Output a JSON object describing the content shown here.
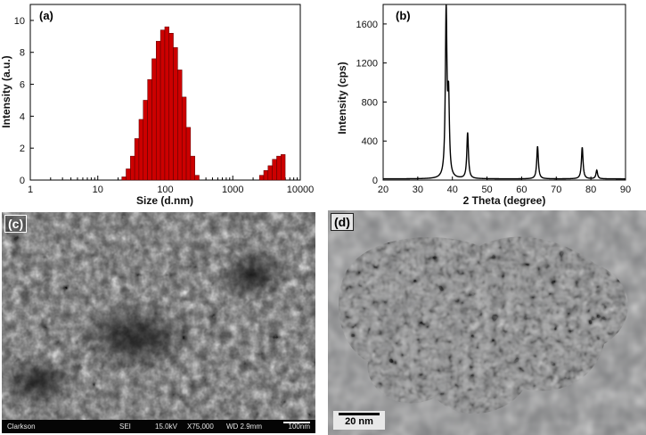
{
  "chart_data": [
    {
      "type": "bar",
      "panel_label": "(a)",
      "xlabel": "Size (d.nm)",
      "ylabel": "Intensity (a.u.)",
      "x_scale": "log",
      "xlim": [
        1,
        10000
      ],
      "ylim": [
        0,
        11
      ],
      "x_ticks": [
        1,
        10,
        100,
        1000,
        10000
      ],
      "y_ticks": [
        0,
        2,
        4,
        6,
        8,
        10
      ],
      "bar_color": "#cc0000",
      "x": [
        24.4,
        28.2,
        32.7,
        37.8,
        43.8,
        50.7,
        58.8,
        68.1,
        78.8,
        91.3,
        105.7,
        122.4,
        141.8,
        164.2,
        190.1,
        220.2,
        255.0,
        295.3,
        2669.0,
        3090.0,
        3580.0,
        4145.0,
        4801.0,
        5560.0
      ],
      "values": [
        0.2,
        0.7,
        1.5,
        2.6,
        3.8,
        5.0,
        6.3,
        7.6,
        8.7,
        9.4,
        9.6,
        9.2,
        8.3,
        6.9,
        5.2,
        3.3,
        1.5,
        0.3,
        0.3,
        0.6,
        0.9,
        1.3,
        1.5,
        1.6
      ]
    },
    {
      "type": "line",
      "panel_label": "(b)",
      "xlabel": "2 Theta (degree)",
      "ylabel": "Intensity (cps)",
      "xlim": [
        20,
        90
      ],
      "ylim": [
        0,
        1800
      ],
      "x_ticks": [
        20,
        30,
        40,
        50,
        60,
        70,
        80,
        90
      ],
      "y_ticks": [
        0,
        400,
        800,
        1200,
        1600
      ],
      "line_color": "#000000",
      "baseline": 12,
      "peaks": [
        {
          "x": 38.2,
          "height": 1720
        },
        {
          "x": 38.9,
          "height": 780
        },
        {
          "x": 44.4,
          "height": 480
        },
        {
          "x": 64.6,
          "height": 340
        },
        {
          "x": 77.5,
          "height": 330
        },
        {
          "x": 81.7,
          "height": 90
        }
      ]
    }
  ],
  "panel_c": {
    "label": "(c)",
    "info_bar": {
      "source": "Clarkson",
      "detector": "SEI",
      "voltage": "15.0kV",
      "magnification": "X75,000",
      "working_distance": "WD 2.9mm",
      "scale": "100nm"
    }
  },
  "panel_d": {
    "label": "(d)",
    "scale_bar": "20 nm"
  }
}
